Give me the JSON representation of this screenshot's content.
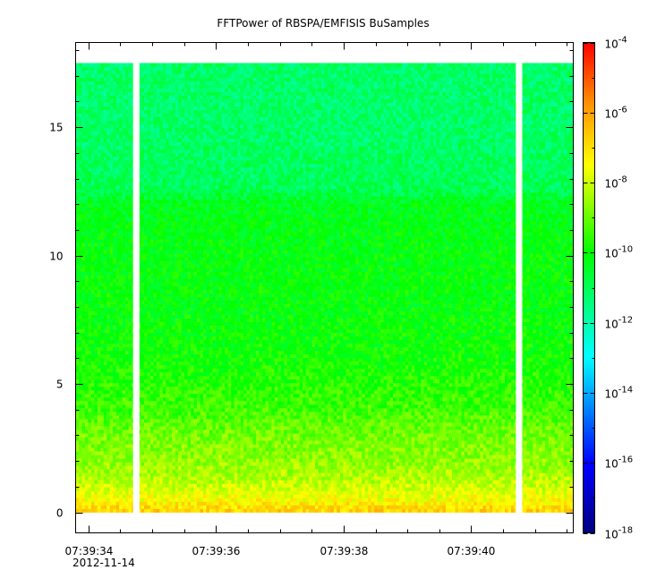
{
  "chart_data": {
    "type": "heatmap",
    "title": "FFTPower of RBSPA/EMFISIS  BuSamples",
    "xlabel": "",
    "ylabel": "",
    "x_axis": {
      "type": "time",
      "date_label": "2012-11-14",
      "range": [
        "07:39:33.8",
        "07:39:41.6"
      ],
      "ticks": [
        "07:39:34",
        "07:39:36",
        "07:39:38",
        "07:39:40"
      ],
      "minor_tick_step_s": 0.5
    },
    "y_axis": {
      "range": [
        -0.8,
        18.3
      ],
      "ticks": [
        0,
        5,
        10,
        15
      ]
    },
    "colorbar": {
      "scale": "log",
      "range": [
        1e-18,
        0.0001
      ],
      "tick_labels": [
        {
          "base": "10",
          "exp": "-18"
        },
        {
          "base": "10",
          "exp": "-16"
        },
        {
          "base": "10",
          "exp": "-14"
        },
        {
          "base": "10",
          "exp": "-12"
        },
        {
          "base": "10",
          "exp": "-10"
        },
        {
          "base": "10",
          "exp": "-8"
        },
        {
          "base": "10",
          "exp": "-6"
        },
        {
          "base": "10",
          "exp": "-4"
        }
      ],
      "colormap": [
        "#00007f",
        "#0000ff",
        "#00ffff",
        "#00ff00",
        "#ffff00",
        "#ff8c00",
        "#ff0000"
      ]
    },
    "data_extent": {
      "time_range": [
        "07:39:33.8",
        "07:39:41.6"
      ],
      "y_range": [
        0,
        17.5
      ],
      "gaps": [
        {
          "start": "07:39:34.7",
          "end": "07:39:34.8"
        },
        {
          "start": "07:39:40.7",
          "end": "07:39:40.8"
        }
      ]
    },
    "spectrum_profile": [
      {
        "y": 0.1,
        "log10_power": -6.8
      },
      {
        "y": 0.5,
        "log10_power": -7.5
      },
      {
        "y": 1.2,
        "log10_power": -8.2
      },
      {
        "y": 2.0,
        "log10_power": -8.6
      },
      {
        "y": 3.0,
        "log10_power": -8.9
      },
      {
        "y": 4.0,
        "log10_power": -9.4
      },
      {
        "y": 6.0,
        "log10_power": -9.9
      },
      {
        "y": 8.0,
        "log10_power": -10.1
      },
      {
        "y": 10.0,
        "log10_power": -10.1
      },
      {
        "y": 12.0,
        "log10_power": -10.3
      },
      {
        "y": 12.6,
        "log10_power": -11.0
      },
      {
        "y": 15.0,
        "log10_power": -11.2
      },
      {
        "y": 17.5,
        "log10_power": -11.2
      }
    ]
  }
}
